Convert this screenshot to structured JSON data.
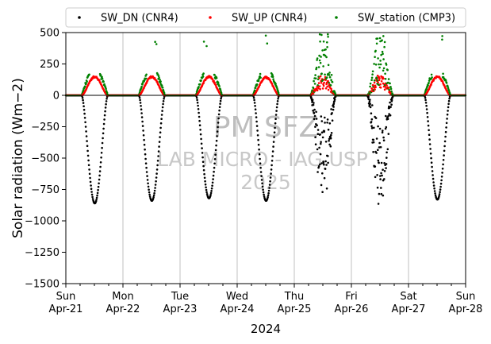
{
  "chart_data": {
    "type": "scatter",
    "title": "",
    "ylabel": "Solar radiation (Wm−2)",
    "xlabel": "2024",
    "ylim": [
      -1500,
      500
    ],
    "xlim_days": [
      0,
      7
    ],
    "yticks": [
      500,
      250,
      0,
      -250,
      -500,
      -750,
      -1000,
      -1250,
      -1500
    ],
    "ytick_labels": [
      "500",
      "250",
      "0",
      "−250",
      "−500",
      "−750",
      "−1000",
      "−1250",
      "−1500"
    ],
    "xticks": [
      {
        "day": "Sun",
        "date": "Apr-21"
      },
      {
        "day": "Mon",
        "date": "Apr-22"
      },
      {
        "day": "Tue",
        "date": "Apr-23"
      },
      {
        "day": "Wed",
        "date": "Apr-24"
      },
      {
        "day": "Thu",
        "date": "Apr-25"
      },
      {
        "day": "Fri",
        "date": "Apr-26"
      },
      {
        "day": "Sat",
        "date": "Apr-27"
      },
      {
        "day": "Sun",
        "date": "Apr-28"
      }
    ],
    "grid": "x",
    "legend_position": "top",
    "zero_line": true,
    "series": [
      {
        "name": "SW_DN (CNR4)",
        "color": "#000000",
        "daily_min": [
          -860,
          -840,
          -820,
          -840,
          -860,
          -890,
          -830
        ]
      },
      {
        "name": "SW_UP (CNR4)",
        "color": "#ff0000",
        "daily_max": [
          150,
          150,
          150,
          145,
          150,
          160,
          150
        ]
      },
      {
        "name": "SW_station (CMP3)",
        "color": "#008000",
        "daily_max": [
          200,
          480,
          430,
          480,
          490,
          480,
          480
        ]
      }
    ],
    "watermark": {
      "line1": "PM SFZ",
      "line2": "LAB MICRO - IAG USP",
      "line3": "2025"
    }
  }
}
